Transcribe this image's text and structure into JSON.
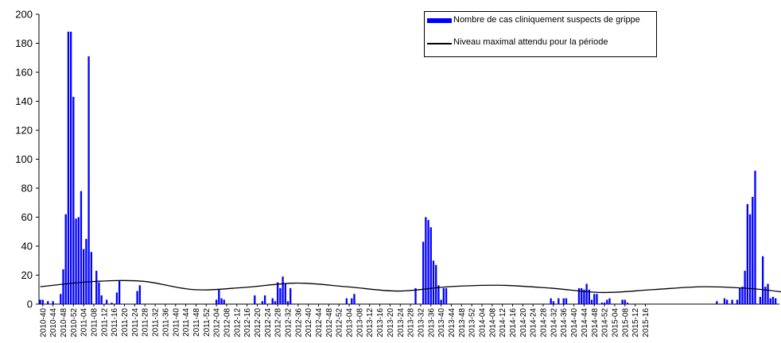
{
  "colors": {
    "bar": "#0000ff",
    "line": "#000000",
    "axis": "#000000"
  },
  "chart_data": {
    "type": "bar",
    "title": "",
    "xlabel": "",
    "ylabel": "",
    "ylim": [
      0,
      200
    ],
    "yticks": [
      0,
      20,
      40,
      60,
      80,
      100,
      120,
      140,
      160,
      180,
      200
    ],
    "grid": false,
    "legend_position": "top-right",
    "tick_labels": [
      "2010-40",
      "2010-44",
      "2010-48",
      "2010-52",
      "2011-04",
      "2011-08",
      "2011-12",
      "2011-16",
      "2011-20",
      "2011-24",
      "2011-28",
      "2011-32",
      "2011-36",
      "2011-40",
      "2011-44",
      "2011-48",
      "2011-52",
      "2012-04",
      "2012-08",
      "2012-12",
      "2012-16",
      "2012-20",
      "2012-24",
      "2012-28",
      "2012-32",
      "2012-36",
      "2012-40",
      "2012-44",
      "2012-48",
      "2012-52",
      "2013-04",
      "2013-08",
      "2013-12",
      "2013-16",
      "2013-20",
      "2013-24",
      "2013-28",
      "2013-32",
      "2013-36",
      "2013-40",
      "2013-44",
      "2013-48",
      "2013-52",
      "2014-04",
      "2014-08",
      "2014-12",
      "2014-16",
      "2014-20",
      "2014-24",
      "2014-28",
      "2014-32",
      "2014-36",
      "2014-40",
      "2014-44",
      "2014-48",
      "2014-52",
      "2015-04",
      "2015-08",
      "2015-12",
      "2015-16"
    ],
    "series": [
      {
        "name": "Nombre de cas cliniquement suspects de grippe",
        "kind": "bar",
        "values": [
          3,
          3,
          0,
          2,
          0,
          2,
          0,
          0,
          7,
          24,
          62,
          188,
          188,
          143,
          59,
          60,
          78,
          38,
          45,
          171,
          36,
          0,
          23,
          15,
          6,
          0,
          3,
          0,
          1,
          0,
          8,
          16,
          0,
          0,
          0,
          0,
          0,
          0,
          9,
          13,
          0,
          0,
          0,
          0,
          0,
          0,
          0,
          0,
          0,
          0,
          0,
          0,
          0,
          0,
          0,
          0,
          0,
          0,
          0,
          0,
          0,
          0,
          0,
          0,
          0,
          0,
          0,
          0,
          0,
          3,
          10,
          4,
          3,
          0,
          0,
          0,
          0,
          0,
          0,
          0,
          0,
          0,
          0,
          0,
          6,
          0,
          0,
          2,
          6,
          0,
          0,
          4,
          2,
          15,
          11,
          19,
          14,
          2,
          11,
          0,
          0,
          0,
          0,
          0,
          0,
          0,
          0,
          0,
          0,
          0,
          0,
          0,
          0,
          0,
          0,
          0,
          0,
          0,
          0,
          0,
          4,
          0,
          4,
          7,
          0,
          0,
          0,
          0,
          0,
          0,
          0,
          0,
          0,
          0,
          0,
          0,
          0,
          0,
          0,
          0,
          0,
          0,
          0,
          0,
          0,
          0,
          0,
          11,
          0,
          0,
          43,
          60,
          58,
          53,
          30,
          27,
          13,
          3,
          11,
          11,
          0,
          0,
          0,
          0,
          0,
          0,
          0,
          0,
          0,
          0,
          0,
          0,
          0,
          0,
          0,
          0,
          0,
          0,
          0,
          0,
          0,
          0,
          0,
          0,
          0,
          0,
          0,
          0,
          0,
          0,
          0,
          0,
          0,
          0,
          0,
          0,
          0,
          0,
          0,
          0,
          4,
          2,
          0,
          4,
          0,
          4,
          4,
          0,
          0,
          0,
          0,
          11,
          11,
          10,
          14,
          10,
          3,
          7,
          7,
          0,
          1,
          1,
          3,
          4,
          0,
          0,
          0,
          0,
          3,
          3,
          1,
          0,
          0,
          0,
          0,
          0,
          0,
          0,
          0,
          0,
          0,
          0,
          0,
          0,
          0,
          0,
          0,
          0,
          0,
          0,
          0,
          0,
          0,
          0,
          0,
          0,
          0,
          0,
          0,
          0,
          0,
          0,
          0,
          0,
          0,
          2,
          0,
          0,
          4,
          3,
          0,
          3,
          0,
          3,
          11,
          12,
          23,
          69,
          62,
          74,
          92,
          0,
          5,
          33,
          12,
          14,
          4,
          5,
          4,
          0
        ]
      },
      {
        "name": "Niveau maximal attendu pour la période",
        "kind": "line",
        "points": [
          [
            0,
            12
          ],
          [
            20,
            15.5
          ],
          [
            40,
            15.8
          ],
          [
            60,
            10
          ],
          [
            80,
            11.5
          ],
          [
            100,
            14.5
          ],
          [
            120,
            12
          ],
          [
            140,
            9
          ],
          [
            160,
            12
          ],
          [
            180,
            13
          ],
          [
            200,
            11
          ],
          [
            220,
            8
          ],
          [
            240,
            10
          ],
          [
            260,
            12
          ],
          [
            280,
            10.5
          ],
          [
            300,
            6.8
          ],
          [
            320,
            8
          ],
          [
            340,
            10.5
          ],
          [
            360,
            11.8
          ],
          [
            378,
            10
          ]
        ]
      }
    ]
  }
}
